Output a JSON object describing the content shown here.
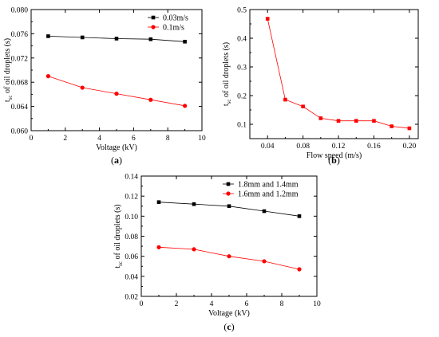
{
  "chart_data": [
    {
      "type": "line",
      "panel_label": "(a)",
      "panel_letter": "a",
      "xlabel": "Voltage (kV)",
      "ylabel": "t_sc of oil droplets (s)",
      "xlim": [
        0,
        10
      ],
      "ylim": [
        0.06,
        0.08
      ],
      "xticks": [
        "0",
        "2",
        "4",
        "6",
        "8",
        "10"
      ],
      "yticks": [
        "0.060",
        "0.064",
        "0.068",
        "0.072",
        "0.076",
        "0.080"
      ],
      "legend_position": "top-right",
      "series": [
        {
          "name": "0.03m/s",
          "color": "#000000",
          "marker": "square",
          "x": [
            1,
            3,
            5,
            7,
            9
          ],
          "y": [
            0.0756,
            0.0754,
            0.0752,
            0.0751,
            0.0747
          ]
        },
        {
          "name": "0.1m/s",
          "color": "#ff0000",
          "marker": "circle",
          "x": [
            1,
            3,
            5,
            7,
            9
          ],
          "y": [
            0.069,
            0.0671,
            0.0661,
            0.0651,
            0.0641
          ]
        }
      ]
    },
    {
      "type": "line",
      "panel_label": "(b)",
      "panel_letter": "b",
      "xlabel": "Flow speed (m/s)",
      "ylabel": "t_sc of oil droplets (s)",
      "xlim": [
        0.02,
        0.21
      ],
      "ylim": [
        0.05,
        0.5
      ],
      "xticks": [
        "0.04",
        "0.08",
        "0.12",
        "0.16",
        "0.20"
      ],
      "yticks": [
        "0.1",
        "0.2",
        "0.3",
        "0.4",
        "0.5"
      ],
      "series": [
        {
          "color": "#ff0000",
          "marker": "square",
          "x": [
            0.04,
            0.06,
            0.08,
            0.1,
            0.12,
            0.14,
            0.16,
            0.18,
            0.2
          ],
          "y": [
            0.468,
            0.186,
            0.162,
            0.121,
            0.112,
            0.112,
            0.112,
            0.093,
            0.086
          ]
        }
      ]
    },
    {
      "type": "line",
      "panel_label": "(c)",
      "panel_letter": "c",
      "xlabel": "Voltage (kV)",
      "ylabel": "t_sc of oil droplets (s)",
      "xlim": [
        0,
        10
      ],
      "ylim": [
        0.02,
        0.14
      ],
      "xticks": [
        "0",
        "2",
        "4",
        "6",
        "8",
        "10"
      ],
      "yticks": [
        "0.02",
        "0.04",
        "0.06",
        "0.08",
        "0.10",
        "0.12",
        "0.14"
      ],
      "legend_position": "top-right",
      "series": [
        {
          "name": "1.8mm and 1.4mm",
          "color": "#000000",
          "marker": "square",
          "x": [
            1,
            3,
            5,
            7,
            9
          ],
          "y": [
            0.114,
            0.112,
            0.11,
            0.105,
            0.1
          ]
        },
        {
          "name": "1.6mm and 1.2mm",
          "color": "#ff0000",
          "marker": "circle",
          "x": [
            1,
            3,
            5,
            7,
            9
          ],
          "y": [
            0.069,
            0.067,
            0.06,
            0.055,
            0.047
          ]
        }
      ]
    }
  ]
}
